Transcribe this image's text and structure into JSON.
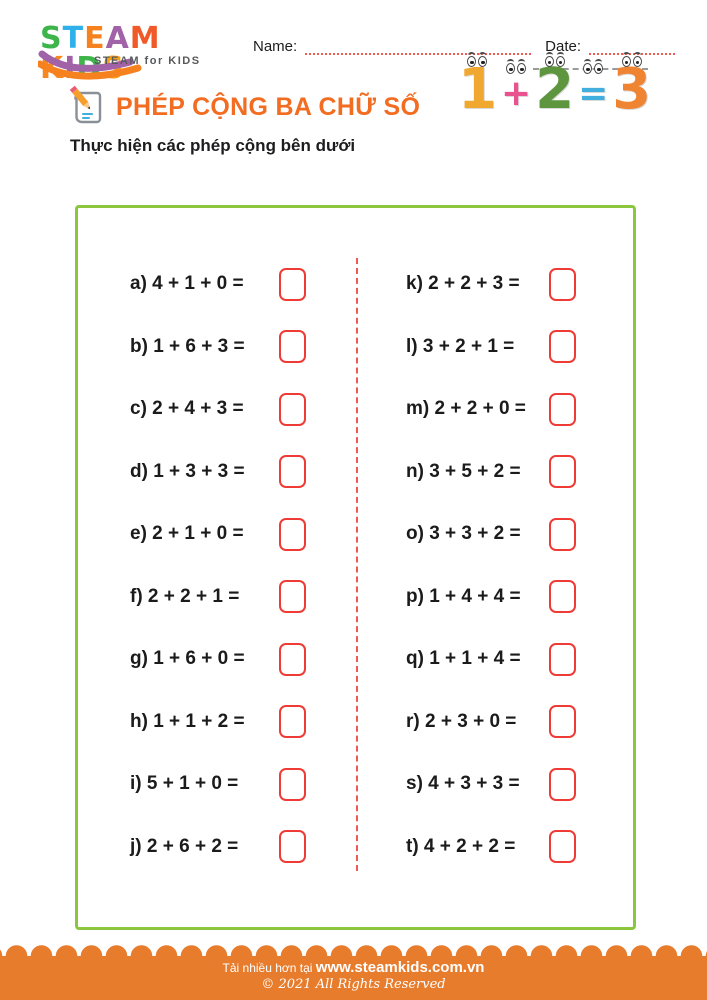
{
  "header": {
    "logo": {
      "letters": [
        {
          "ch": "S",
          "color": "#3DB54A"
        },
        {
          "ch": "T",
          "color": "#2FB0E8"
        },
        {
          "ch": "E",
          "color": "#F5821F"
        },
        {
          "ch": "A",
          "color": "#A262A8"
        },
        {
          "ch": "M",
          "color": "#F05A28"
        },
        {
          "ch": " ",
          "color": "#000000"
        },
        {
          "ch": "K",
          "color": "#F6881F"
        },
        {
          "ch": "I",
          "color": "#A262A8"
        },
        {
          "ch": "D",
          "color": "#3DB54A"
        },
        {
          "ch": "S",
          "color": "#F5A01B"
        }
      ],
      "tagline": "STEAM for KIDS"
    },
    "name_label": "Name:",
    "date_label": "Date:"
  },
  "title": {
    "text": "PHÉP CỘNG BA CHỮ SỐ"
  },
  "icons": {
    "title_icon": "pencil-paper"
  },
  "instruction": "Thực hiện các phép cộng bên dưới",
  "mascot": {
    "characters": [
      {
        "glyph": "1",
        "color": "#F0A830",
        "size": "big"
      },
      {
        "glyph": "+",
        "color": "#E8538F",
        "size": "small"
      },
      {
        "glyph": "2",
        "color": "#5E9640",
        "size": "big"
      },
      {
        "glyph": "=",
        "color": "#41AEDE",
        "size": "small"
      },
      {
        "glyph": "3",
        "color": "#EF8432",
        "size": "big"
      }
    ]
  },
  "problems": {
    "left": [
      {
        "letter": "a",
        "expression": "4 + 1 + 0"
      },
      {
        "letter": "b",
        "expression": "1 + 6 + 3"
      },
      {
        "letter": "c",
        "expression": "2 + 4 + 3"
      },
      {
        "letter": "d",
        "expression": "1 + 3 + 3"
      },
      {
        "letter": "e",
        "expression": "2 + 1 + 0"
      },
      {
        "letter": "f",
        "expression": "2 + 2 + 1"
      },
      {
        "letter": "g",
        "expression": "1 + 6 + 0"
      },
      {
        "letter": "h",
        "expression": "1 + 1 + 2"
      },
      {
        "letter": "i",
        "expression": "5 + 1 + 0"
      },
      {
        "letter": "j",
        "expression": "2 + 6 + 2"
      }
    ],
    "right": [
      {
        "letter": "k",
        "expression": "2 + 2 + 3"
      },
      {
        "letter": "l",
        "expression": "3 + 2 + 1"
      },
      {
        "letter": "m",
        "expression": "2 + 2 + 0"
      },
      {
        "letter": "n",
        "expression": "3 + 5 + 2"
      },
      {
        "letter": "o",
        "expression": "3 + 3 + 2"
      },
      {
        "letter": "p",
        "expression": "1 + 4 + 4"
      },
      {
        "letter": "q",
        "expression": "1 + 1 + 4"
      },
      {
        "letter": "r",
        "expression": "2 + 3 + 0"
      },
      {
        "letter": "s",
        "expression": "4 + 3 + 3"
      },
      {
        "letter": "t",
        "expression": "4 + 2 + 2"
      }
    ]
  },
  "footer": {
    "line1_prefix": "Tải nhiều hơn tại ",
    "site": "www.steamkids.com.vn",
    "line2": "© 2021 All Rights Reserved"
  },
  "colors": {
    "title_orange": "#F26D21",
    "footer_orange": "#E87C2D",
    "box_border_green": "#8CC63E",
    "answer_box_red": "#EF3B36",
    "dotted_line_red": "#EE5A52",
    "text_dark": "#1d1d1f",
    "tagline_gray": "#58595B"
  }
}
